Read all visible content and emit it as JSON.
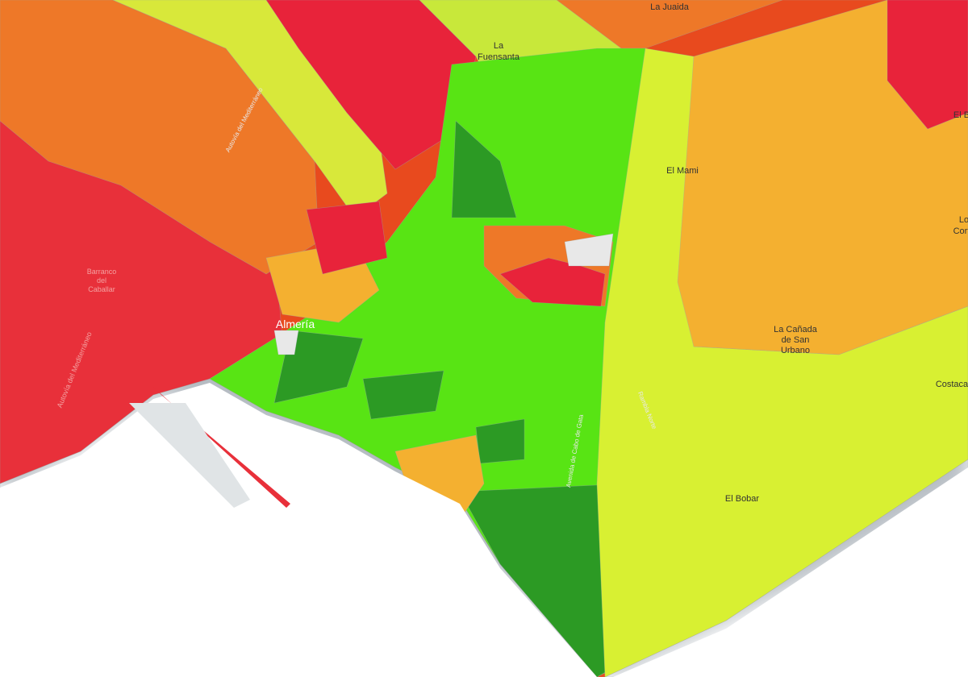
{
  "map": {
    "labels": [
      {
        "lines": [
          "La Juaida"
        ]
      },
      {
        "lines": [
          "La",
          "Fuensanta"
        ]
      },
      {
        "lines": [
          "El Mami"
        ]
      },
      {
        "lines": [
          "Autovía del Mediterráneo"
        ]
      },
      {
        "lines": [
          "Barranco",
          "del",
          "Caballar"
        ]
      },
      {
        "lines": [
          "Almería"
        ]
      },
      {
        "lines": [
          "Autovía del Mediterráneo"
        ]
      },
      {
        "lines": [
          "La Cañada",
          "de San",
          "Urbano"
        ]
      },
      {
        "lines": [
          "El Bobar"
        ]
      },
      {
        "lines": [
          "Costaca"
        ]
      },
      {
        "lines": [
          "Rambla Norte"
        ]
      },
      {
        "lines": [
          "Avenida de Cabo de Gata"
        ]
      },
      {
        "lines": [
          "El B"
        ]
      },
      {
        "lines": [
          "Lo",
          "Cort"
        ]
      }
    ]
  }
}
